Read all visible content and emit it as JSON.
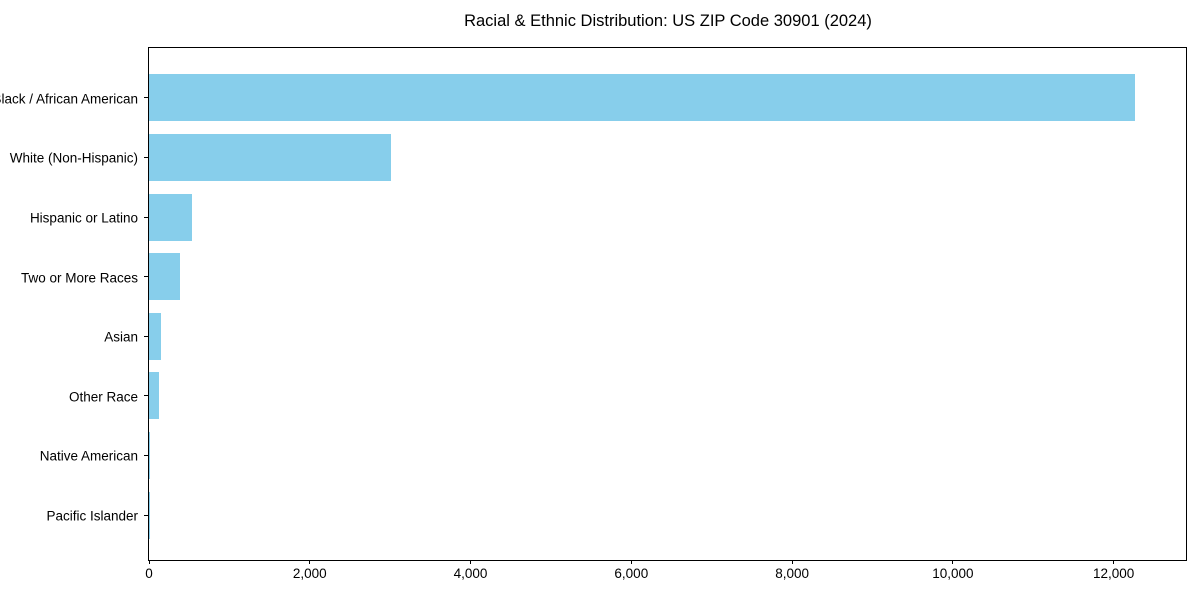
{
  "chart_data": {
    "type": "bar",
    "orientation": "horizontal",
    "title": "Racial & Ethnic Distribution: US ZIP Code 30901 (2024)",
    "categories": [
      "Black / African American",
      "White (Non-Hispanic)",
      "Hispanic or Latino",
      "Two or More Races",
      "Asian",
      "Other Race",
      "Native American",
      "Pacific Islander"
    ],
    "values": [
      12270,
      3010,
      530,
      380,
      155,
      120,
      5,
      2
    ],
    "x_ticks": [
      {
        "value": 0,
        "label": "0"
      },
      {
        "value": 2000,
        "label": "2,000"
      },
      {
        "value": 4000,
        "label": "4,000"
      },
      {
        "value": 6000,
        "label": "6,000"
      },
      {
        "value": 8000,
        "label": "8,000"
      },
      {
        "value": 10000,
        "label": "10,000"
      },
      {
        "value": 12000,
        "label": "12,000"
      }
    ],
    "xlabel": "",
    "ylabel": "",
    "xlim": [
      0,
      12900
    ],
    "bar_color": "#87CEEB",
    "frame_color": "#000000",
    "grid": false,
    "legend": false
  }
}
